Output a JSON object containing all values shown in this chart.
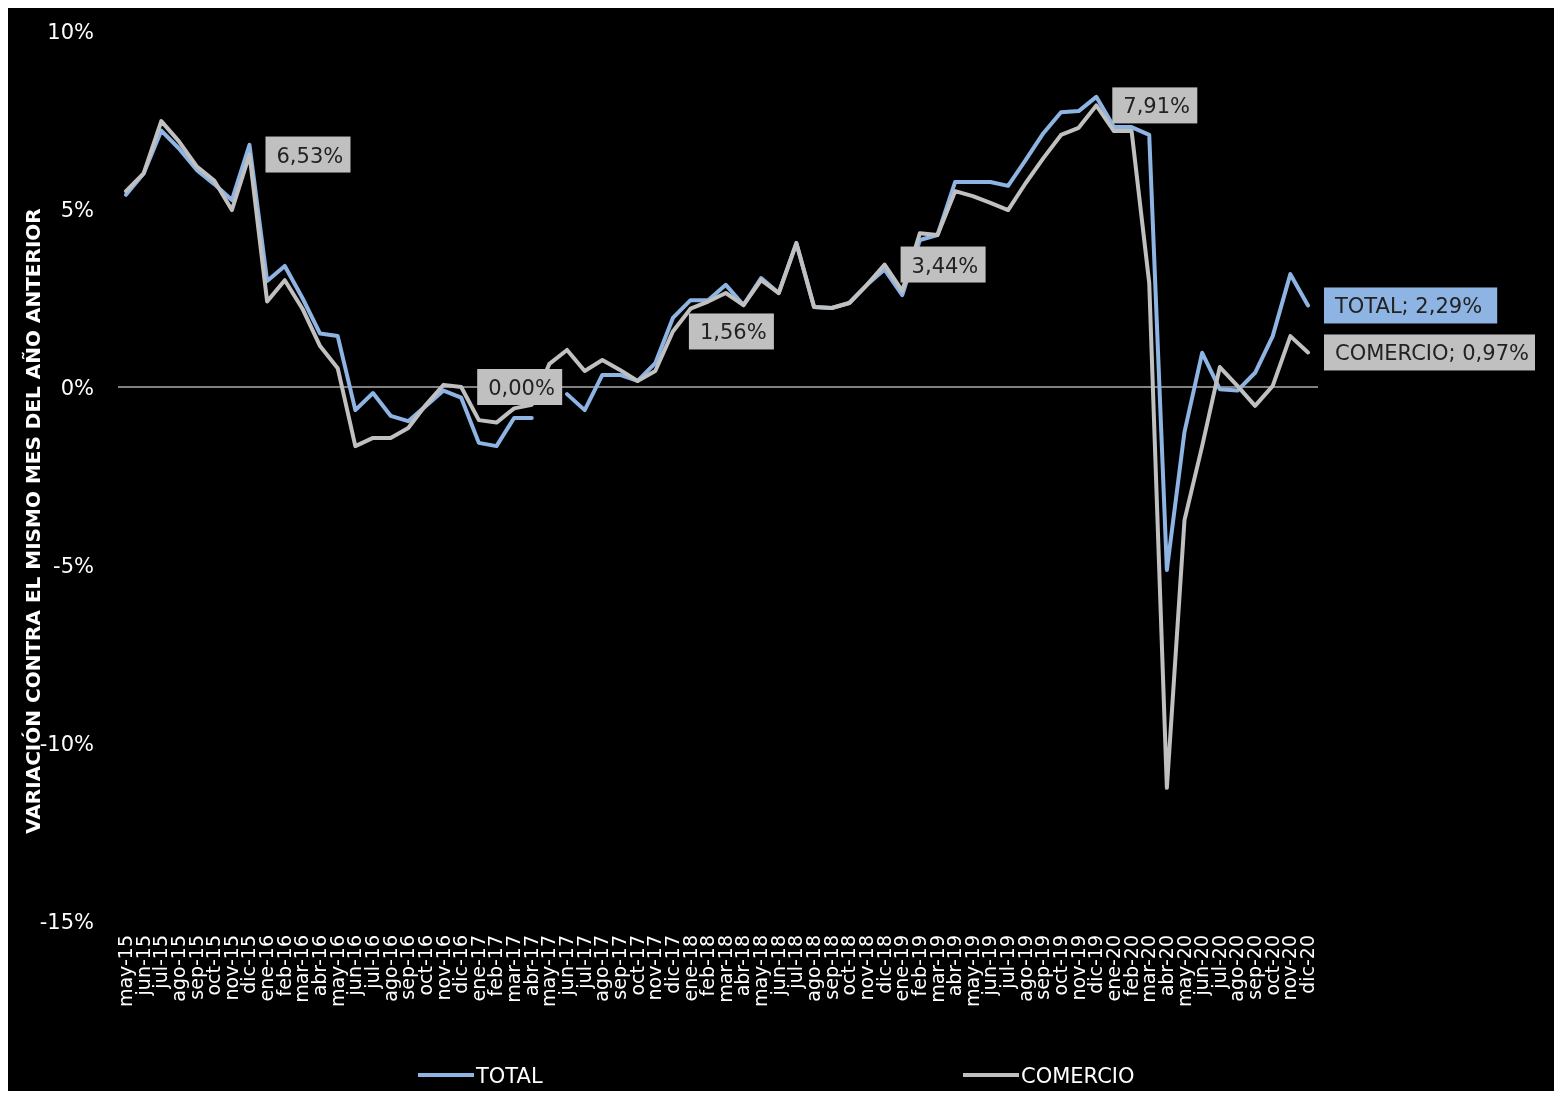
{
  "chart_data": {
    "type": "line",
    "ylabel": "VARIACIÓN CONTRA EL MISMO MES DEL AÑO ANTERIOR",
    "categories": [
      "may-15",
      "jun-15",
      "jul-15",
      "ago-15",
      "sep-15",
      "oct-15",
      "nov-15",
      "dic-15",
      "ene-16",
      "feb-16",
      "mar-16",
      "abr-16",
      "may-16",
      "jun-16",
      "jul-16",
      "ago-16",
      "sep-16",
      "oct-16",
      "nov-16",
      "dic-16",
      "ene-17",
      "feb-17",
      "mar-17",
      "abr-17",
      "may-17",
      "jun-17",
      "jul-17",
      "ago-17",
      "sep-17",
      "oct-17",
      "nov-17",
      "dic-17",
      "ene-18",
      "feb-18",
      "mar-18",
      "abr-18",
      "may-18",
      "jun-18",
      "jul-18",
      "ago-18",
      "sep-18",
      "oct-18",
      "nov-18",
      "dic-18",
      "ene-19",
      "feb-19",
      "mar-19",
      "abr-19",
      "may-19",
      "jun-19",
      "jul-19",
      "ago-19",
      "sep-19",
      "oct-19",
      "nov-19",
      "dic-19",
      "ene-20",
      "feb-20",
      "mar-20",
      "abr-20",
      "may-20",
      "jun-20",
      "jul-20",
      "ago-20",
      "sep-20",
      "oct-20",
      "nov-20",
      "dic-20"
    ],
    "series": [
      {
        "name": "TOTAL",
        "color": "#8db4e2",
        "values": [
          5.4,
          6.0,
          7.2,
          6.7,
          6.1,
          5.7,
          5.25,
          6.8,
          2.98,
          3.4,
          2.5,
          1.5,
          1.43,
          -0.65,
          -0.17,
          -0.81,
          -0.96,
          -0.53,
          -0.1,
          -0.3,
          -1.57,
          -1.66,
          -0.87,
          -0.87,
          null,
          -0.2,
          -0.65,
          0.34,
          0.34,
          0.17,
          0.67,
          1.94,
          2.44,
          2.44,
          2.87,
          2.3,
          3.06,
          2.64,
          4.04,
          2.25,
          2.22,
          2.36,
          2.87,
          3.3,
          2.58,
          4.13,
          4.27,
          5.76,
          5.76,
          5.76,
          5.65,
          6.38,
          7.13,
          7.72,
          7.75,
          8.15,
          7.3,
          7.3,
          7.08,
          -5.14,
          -1.26,
          0.96,
          -0.06,
          -0.1,
          0.4,
          1.43,
          3.17,
          2.29
        ],
        "value_labels": [
          null,
          null,
          null,
          null,
          null,
          null,
          null,
          null,
          null,
          null,
          null,
          null,
          null,
          null,
          null,
          null,
          null,
          null,
          null,
          null,
          null,
          null,
          null,
          null,
          null,
          null,
          null,
          null,
          null,
          null,
          null,
          null,
          null,
          null,
          null,
          null,
          null,
          null,
          null,
          null,
          null,
          null,
          null,
          null,
          null,
          null,
          null,
          null,
          null,
          null,
          null,
          null,
          null,
          null,
          null,
          null,
          null,
          null,
          null,
          null,
          null,
          null,
          null,
          null,
          null,
          null,
          null,
          "TOTAL; 2,29%"
        ]
      },
      {
        "name": "COMERCIO",
        "color": "#c0c0c0",
        "values": [
          5.5,
          6.0,
          7.47,
          6.9,
          6.2,
          5.8,
          4.97,
          6.53,
          2.4,
          3.0,
          2.2,
          1.15,
          0.53,
          -1.66,
          -1.43,
          -1.43,
          -1.15,
          -0.5,
          0.06,
          0.0,
          -0.93,
          -1.0,
          -0.6,
          -0.5,
          0.65,
          1.04,
          0.45,
          0.76,
          0.48,
          0.17,
          0.45,
          1.56,
          2.2,
          2.4,
          2.64,
          2.3,
          3.0,
          2.64,
          4.04,
          2.25,
          2.22,
          2.36,
          2.87,
          3.44,
          2.7,
          4.32,
          4.27,
          5.5,
          5.36,
          5.17,
          4.97,
          5.73,
          6.43,
          7.08,
          7.28,
          7.91,
          7.19,
          7.19,
          2.92,
          -11.26,
          -3.74,
          -1.66,
          0.56,
          0.03,
          -0.53,
          0.03,
          1.43,
          0.97
        ],
        "value_labels": [
          null,
          null,
          null,
          null,
          null,
          null,
          null,
          "6,53%",
          null,
          null,
          null,
          null,
          null,
          null,
          null,
          null,
          null,
          null,
          null,
          "0,00%",
          null,
          null,
          null,
          null,
          null,
          null,
          null,
          null,
          null,
          null,
          null,
          "1,56%",
          null,
          null,
          null,
          null,
          null,
          null,
          null,
          null,
          null,
          null,
          null,
          "3,44%",
          null,
          null,
          null,
          null,
          null,
          null,
          null,
          null,
          null,
          null,
          null,
          "7,91%",
          null,
          null,
          null,
          null,
          null,
          null,
          null,
          null,
          null,
          null,
          null,
          "COMERCIO; 0,97%"
        ]
      }
    ],
    "ylim": [
      -15,
      10
    ],
    "yticks": [
      {
        "value": 10,
        "label": "10%"
      },
      {
        "value": 5,
        "label": "5%"
      },
      {
        "value": 0,
        "label": "0%"
      },
      {
        "value": -5,
        "label": "-5%"
      },
      {
        "value": -10,
        "label": "-10%"
      },
      {
        "value": -15,
        "label": "-15%"
      }
    ],
    "grid": false,
    "ref_lines": [
      {
        "axis": "y",
        "value": 0,
        "color": "#808080"
      }
    ],
    "legend": "bottom",
    "marker": "none",
    "line_style": "solid"
  }
}
